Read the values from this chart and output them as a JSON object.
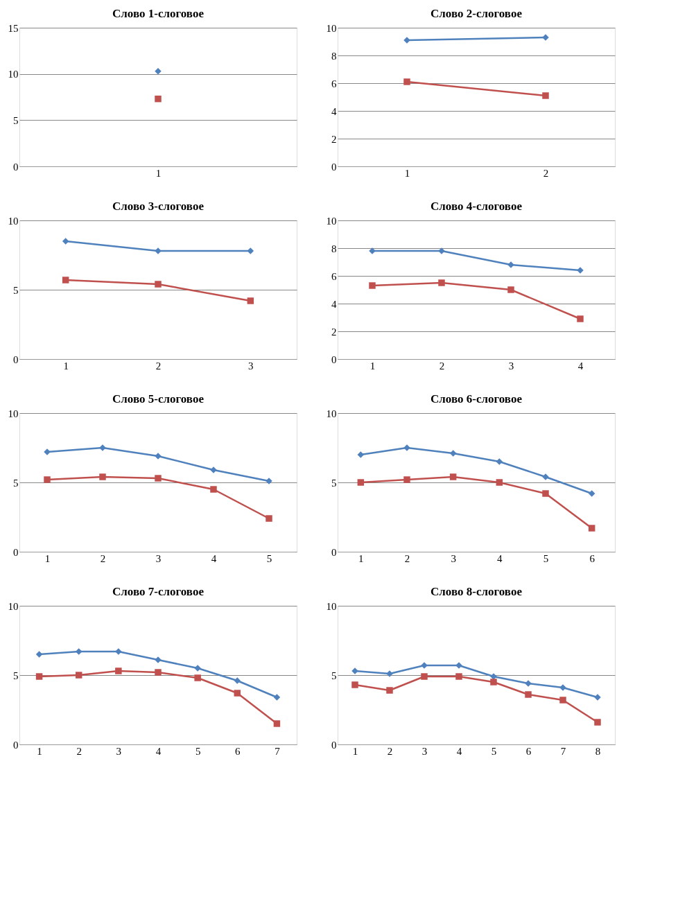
{
  "chart_data": [
    {
      "type": "line",
      "title": "Слово 1-слоговое",
      "categories": [
        "1"
      ],
      "ylim": [
        0,
        15
      ],
      "yticks": [
        0,
        5,
        10,
        15
      ],
      "grid": "y",
      "series": [
        {
          "color": "#4f81bd",
          "marker": "diamond",
          "values": [
            10.3
          ]
        },
        {
          "color": "#c0504d",
          "marker": "square",
          "values": [
            7.3
          ]
        }
      ]
    },
    {
      "type": "line",
      "title": "Слово 2-слоговое",
      "categories": [
        "1",
        "2"
      ],
      "ylim": [
        0,
        10
      ],
      "yticks": [
        0,
        2,
        4,
        6,
        8,
        10
      ],
      "grid": "y",
      "series": [
        {
          "color": "#4f81bd",
          "marker": "diamond",
          "values": [
            9.1,
            9.3
          ]
        },
        {
          "color": "#c0504d",
          "marker": "square",
          "values": [
            6.1,
            5.1
          ]
        }
      ]
    },
    {
      "type": "line",
      "title": "Слово 3-слоговое",
      "categories": [
        "1",
        "2",
        "3"
      ],
      "ylim": [
        0,
        10
      ],
      "yticks": [
        0,
        5,
        10
      ],
      "grid": "y",
      "series": [
        {
          "color": "#4f81bd",
          "marker": "diamond",
          "values": [
            8.5,
            7.8,
            7.8
          ]
        },
        {
          "color": "#c0504d",
          "marker": "square",
          "values": [
            5.7,
            5.4,
            4.2
          ]
        }
      ]
    },
    {
      "type": "line",
      "title": "Слово 4-слоговое",
      "categories": [
        "1",
        "2",
        "3",
        "4"
      ],
      "ylim": [
        0,
        10
      ],
      "yticks": [
        0,
        2,
        4,
        6,
        8,
        10
      ],
      "grid": "y",
      "series": [
        {
          "color": "#4f81bd",
          "marker": "diamond",
          "values": [
            7.8,
            7.8,
            6.8,
            6.4
          ]
        },
        {
          "color": "#c0504d",
          "marker": "square",
          "values": [
            5.3,
            5.5,
            5.0,
            2.9
          ]
        }
      ]
    },
    {
      "type": "line",
      "title": "Слово 5-слоговое",
      "categories": [
        "1",
        "2",
        "3",
        "4",
        "5"
      ],
      "ylim": [
        0,
        10
      ],
      "yticks": [
        0,
        5,
        10
      ],
      "grid": "y",
      "series": [
        {
          "color": "#4f81bd",
          "marker": "diamond",
          "values": [
            7.2,
            7.5,
            6.9,
            5.9,
            5.1
          ]
        },
        {
          "color": "#c0504d",
          "marker": "square",
          "values": [
            5.2,
            5.4,
            5.3,
            4.5,
            2.4
          ]
        }
      ]
    },
    {
      "type": "line",
      "title": "Слово 6-слоговое",
      "categories": [
        "1",
        "2",
        "3",
        "4",
        "5",
        "6"
      ],
      "ylim": [
        0,
        10
      ],
      "yticks": [
        0,
        5,
        10
      ],
      "grid": "y",
      "series": [
        {
          "color": "#4f81bd",
          "marker": "diamond",
          "values": [
            7.0,
            7.5,
            7.1,
            6.5,
            5.4,
            4.2
          ]
        },
        {
          "color": "#c0504d",
          "marker": "square",
          "values": [
            5.0,
            5.2,
            5.4,
            5.0,
            4.2,
            1.7
          ]
        }
      ]
    },
    {
      "type": "line",
      "title": "Слово 7-слоговое",
      "categories": [
        "1",
        "2",
        "3",
        "4",
        "5",
        "6",
        "7"
      ],
      "ylim": [
        0,
        10
      ],
      "yticks": [
        0,
        5,
        10
      ],
      "grid": "y",
      "series": [
        {
          "color": "#4f81bd",
          "marker": "diamond",
          "values": [
            6.5,
            6.7,
            6.7,
            6.1,
            5.5,
            4.6,
            3.4
          ]
        },
        {
          "color": "#c0504d",
          "marker": "square",
          "values": [
            4.9,
            5.0,
            5.3,
            5.2,
            4.8,
            3.7,
            1.5
          ]
        }
      ]
    },
    {
      "type": "line",
      "title": "Слово 8-слоговое",
      "categories": [
        "1",
        "2",
        "3",
        "4",
        "5",
        "6",
        "7",
        "8"
      ],
      "ylim": [
        0,
        10
      ],
      "yticks": [
        0,
        5,
        10
      ],
      "grid": "y",
      "series": [
        {
          "color": "#4f81bd",
          "marker": "diamond",
          "values": [
            5.3,
            5.1,
            5.7,
            5.7,
            4.9,
            4.4,
            4.1,
            3.4
          ]
        },
        {
          "color": "#c0504d",
          "marker": "square",
          "values": [
            4.3,
            3.9,
            4.9,
            4.9,
            4.5,
            3.6,
            3.2,
            1.6
          ]
        }
      ]
    }
  ]
}
